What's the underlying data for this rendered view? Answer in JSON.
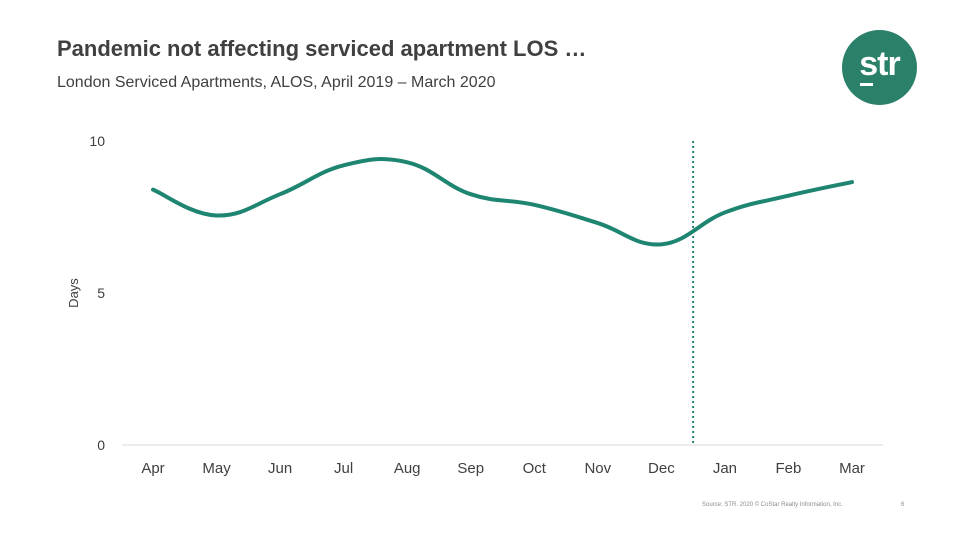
{
  "slide": {
    "title": "Pandemic not affecting serviced apartment LOS …",
    "subtitle": "London Serviced Apartments, ALOS, April 2019 – March 2020",
    "logo_text": "str",
    "footer": "Source: STR. 2020 © CoStar Realty Information, Inc.",
    "page_number": "6"
  },
  "colors": {
    "series": "#1e8571",
    "marker_line": "#1e8571",
    "logo_bg": "#2b806a",
    "axis": "#d9d9d9",
    "text": "#404040"
  },
  "chart_data": {
    "type": "line",
    "title": "London Serviced Apartments, ALOS, April 2019 – March 2020",
    "xlabel": "",
    "ylabel": "Days",
    "categories": [
      "Apr",
      "May",
      "Jun",
      "Jul",
      "Aug",
      "Sep",
      "Oct",
      "Nov",
      "Dec",
      "Jan",
      "Feb",
      "Mar"
    ],
    "series": [
      {
        "name": "ALOS",
        "values": [
          8.4,
          7.55,
          8.25,
          9.2,
          9.3,
          8.25,
          7.9,
          7.3,
          6.6,
          7.65,
          8.2,
          8.65
        ]
      }
    ],
    "ylim": [
      0,
      10
    ],
    "yticks": [
      "0",
      "5",
      "10"
    ],
    "marker_after_category": "Dec",
    "grid": false,
    "legend": "none"
  }
}
